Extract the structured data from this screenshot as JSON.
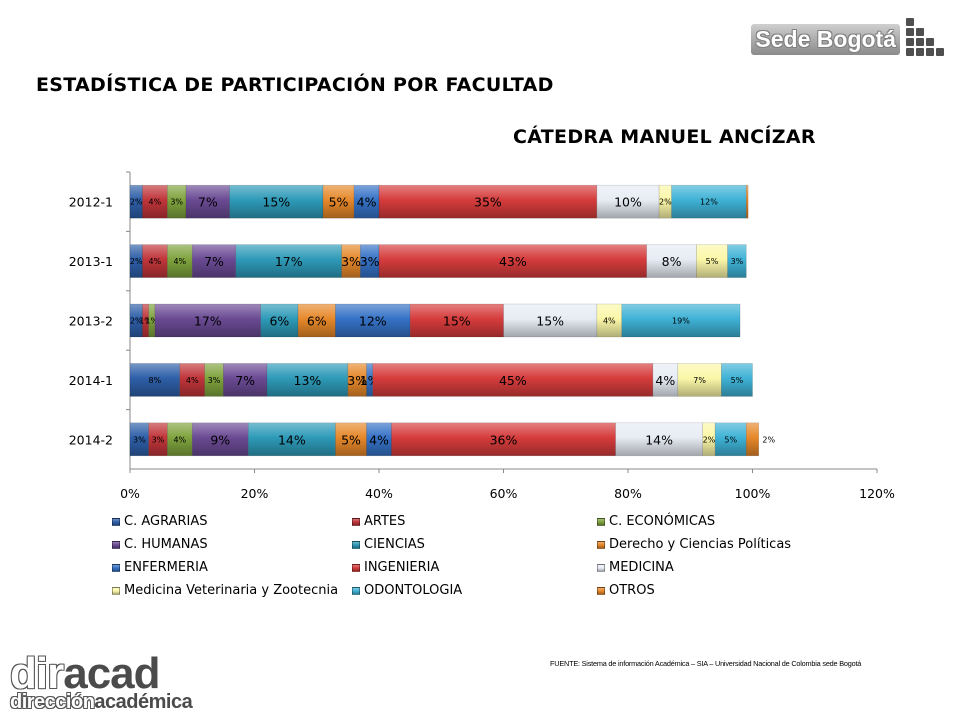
{
  "header": {
    "title": "ESTADÍSTICA DE PARTICIPACIÓN POR FACULTAD",
    "logo_text": "Sede Bogotá"
  },
  "chart_data": {
    "type": "bar",
    "orientation": "horizontal",
    "stacked": true,
    "title": "CÁTEDRA MANUEL ANCÍZAR",
    "xlim": [
      0,
      120
    ],
    "x_ticks": [
      "0%",
      "20%",
      "40%",
      "60%",
      "80%",
      "100%",
      "120%"
    ],
    "grid": false,
    "legend_position": "bottom",
    "categories": [
      "2012-1",
      "2013-1",
      "2013-2",
      "2014-1",
      "2014-2"
    ],
    "series": [
      {
        "name": "C. AGRARIAS",
        "color": "#2E5FA8",
        "values": [
          2,
          2,
          2,
          8,
          3
        ]
      },
      {
        "name": "ARTES",
        "color": "#C0353A",
        "values": [
          4,
          4,
          1,
          4,
          3
        ]
      },
      {
        "name": "C. ECONÓMICAS",
        "color": "#7FA33E",
        "values": [
          3,
          4,
          1,
          3,
          4
        ]
      },
      {
        "name": "C. HUMANAS",
        "color": "#6A4A93",
        "values": [
          7,
          7,
          17,
          7,
          9
        ]
      },
      {
        "name": "CIENCIAS",
        "color": "#2E9AB8",
        "values": [
          15,
          17,
          6,
          13,
          14
        ]
      },
      {
        "name": "Derecho y Ciencias Políticas",
        "color": "#E6882A",
        "values": [
          5,
          3,
          6,
          3,
          5
        ]
      },
      {
        "name": "ENFERMERIA",
        "color": "#3572C6",
        "values": [
          4,
          3,
          12,
          1,
          4
        ]
      },
      {
        "name": "INGENIERIA",
        "color": "#D63C3C",
        "values": [
          35,
          43,
          15,
          45,
          36
        ]
      },
      {
        "name": "MEDICINA",
        "color": "#E7ECF4",
        "values": [
          10,
          8,
          15,
          4,
          14
        ]
      },
      {
        "name": "Medicina Veterinaria y Zootecnia",
        "color": "#FBF7A8",
        "values": [
          2,
          5,
          4,
          7,
          2
        ]
      },
      {
        "name": "ODONTOLOGIA",
        "color": "#3FB2D6",
        "values": [
          12,
          3,
          19,
          5,
          5
        ]
      },
      {
        "name": "OTROS",
        "color": "#E6882A",
        "values": [
          0.3,
          0,
          0,
          0,
          2
        ]
      }
    ],
    "data_labels": [
      [
        "2%",
        "4%",
        "3%",
        "7%",
        "15%",
        "5%",
        "4%",
        "35%",
        "10%",
        "2%",
        "12%",
        ""
      ],
      [
        "2%",
        "4%",
        "4%",
        "7%",
        "17%",
        "3%",
        "3%",
        "43%",
        "8%",
        "5%",
        "3%",
        ""
      ],
      [
        "2%",
        "1%",
        "1%",
        "17%",
        "6%",
        "6%",
        "12%",
        "15%",
        "15%",
        "4%",
        "19%",
        ""
      ],
      [
        "8%",
        "4%",
        "3%",
        "7%",
        "13%",
        "3%",
        "1%",
        "45%",
        "4%",
        "7%",
        "5%",
        ""
      ],
      [
        "3%",
        "3%",
        "4%",
        "9%",
        "14%",
        "5%",
        "4%",
        "36%",
        "14%",
        "2%",
        "5%",
        "2%"
      ]
    ],
    "label_sizes": [
      [
        "s",
        "s",
        "s",
        "l",
        "l",
        "l",
        "l",
        "l",
        "l",
        "s",
        "s",
        ""
      ],
      [
        "s",
        "s",
        "s",
        "l",
        "l",
        "l",
        "l",
        "l",
        "l",
        "s",
        "s",
        ""
      ],
      [
        "s",
        "s",
        "s",
        "l",
        "l",
        "l",
        "l",
        "l",
        "l",
        "s",
        "s",
        ""
      ],
      [
        "s",
        "s",
        "s",
        "l",
        "l",
        "l",
        "l",
        "l",
        "l",
        "s",
        "s",
        ""
      ],
      [
        "s",
        "s",
        "s",
        "l",
        "l",
        "l",
        "l",
        "l",
        "l",
        "s",
        "s",
        "s"
      ]
    ]
  },
  "footer": {
    "source": "FUENTE: Sistema de información Académica – SIA – Universidad Nacional de Colombia sede Bogotá",
    "brand_part1": "dir",
    "brand_part2": "acad",
    "brand_sub1": "dirección",
    "brand_sub2": "académica"
  }
}
